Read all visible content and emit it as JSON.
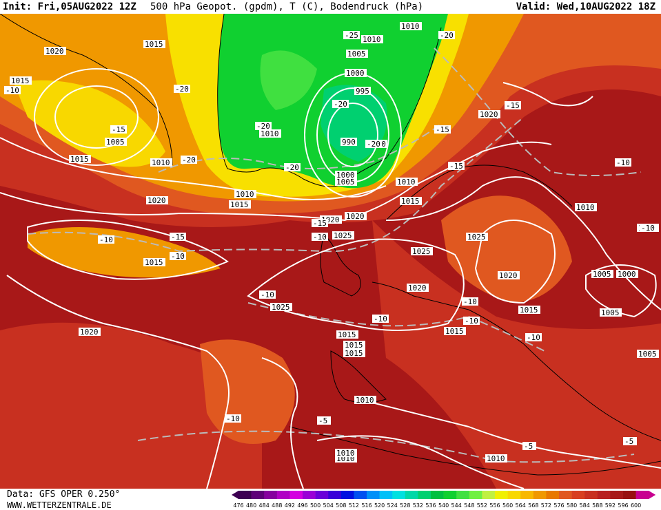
{
  "header": {
    "init": "Init: Fri,05AUG2022 12Z",
    "title": "500 hPa Geopot. (gpdm), T (C), Bodendruck (hPa)",
    "valid": "Valid: Wed,10AUG2022 18Z"
  },
  "footer": {
    "data_source": "Data: GFS OPER 0.250°",
    "website": "WWW.WETTERZENTRALE.DE"
  },
  "legend": {
    "values": [
      "476",
      "480",
      "484",
      "488",
      "492",
      "496",
      "500",
      "504",
      "508",
      "512",
      "516",
      "520",
      "524",
      "528",
      "532",
      "536",
      "540",
      "544",
      "548",
      "552",
      "556",
      "560",
      "564",
      "568",
      "572",
      "576",
      "580",
      "584",
      "588",
      "592",
      "596",
      "600"
    ],
    "colors": [
      "#3d0052",
      "#5e0078",
      "#86009e",
      "#b000c4",
      "#d400e0",
      "#9a00d6",
      "#6a00d8",
      "#3a00d8",
      "#0010e0",
      "#0050f0",
      "#0090f8",
      "#00c0f8",
      "#00e0e0",
      "#00d8a8",
      "#00d070",
      "#00c040",
      "#10d030",
      "#40e040",
      "#70f040",
      "#c0f040",
      "#f0f000",
      "#f8d800",
      "#f8b800",
      "#f09800",
      "#e87800",
      "#e05820",
      "#d84020",
      "#c83020",
      "#b82020",
      "#a81818",
      "#981010",
      "#c80090"
    ]
  },
  "map": {
    "isobars": [
      "1020",
      "1015",
      "1015",
      "1010",
      "1015",
      "1005",
      "1015",
      "1010",
      "1020",
      "1015",
      "1010",
      "1015",
      "1010",
      "1005",
      "1000",
      "995",
      "990",
      "1000",
      "1005",
      "1010",
      "1010",
      "1015",
      "1020",
      "1025",
      "1025",
      "1025",
      "1020",
      "1015",
      "1020",
      "1010",
      "1020",
      "1025",
      "1020",
      "1015",
      "1015",
      "1015",
      "1010",
      "1010",
      "1010",
      "1010",
      "1005",
      "1000",
      "1005",
      "1005",
      "1000",
      "1020"
    ],
    "isotherms": [
      "-20",
      "-25",
      "-20",
      "-20",
      "-20",
      "-20",
      "-15",
      "-20",
      "-15",
      "-15",
      "-20",
      "-20",
      "-15",
      "-10",
      "-15",
      "-10",
      "-10",
      "-10",
      "-10",
      "-15",
      "-10",
      "-10",
      "-10",
      "-10",
      "-10",
      "-10",
      "-10",
      "-5",
      "-5",
      "-5"
    ],
    "colors": {
      "ridge_dark": "#a81818",
      "ridge": "#c83020",
      "mid_orange": "#e05820",
      "orange": "#f09800",
      "yellow": "#f8e000",
      "green": "#10d030",
      "green_light": "#40e040",
      "trough_core": "#00d070",
      "contour": "#ffffff",
      "isotherm": "#bbbbbb",
      "land_outline": "#000000"
    }
  }
}
